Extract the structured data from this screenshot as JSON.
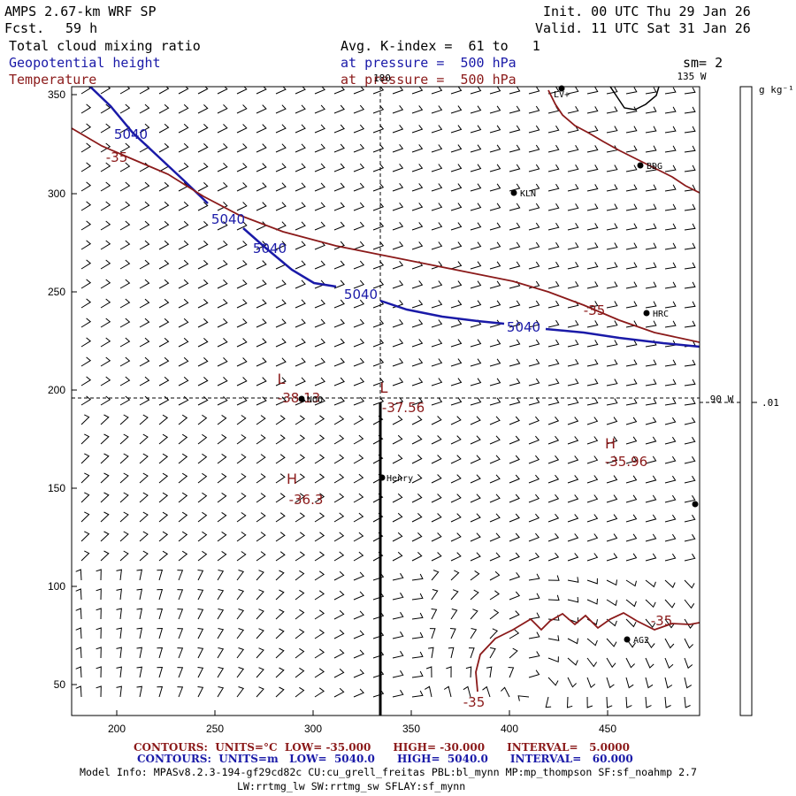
{
  "header": {
    "model": "AMPS 2.67-km WRF SP",
    "fcst_label": "Fcst.",
    "fcst_value": "59 h",
    "init": "Init. 00 UTC Thu 29 Jan 26",
    "valid": "Valid. 11 UTC Sat 31 Jan 26",
    "field1": "Total cloud mixing ratio",
    "field2": "Geopotential height",
    "field3": "Temperature",
    "avg_line": "Avg. K-index =  61 to   1",
    "pressure_blue": "at pressure =  500 hPa",
    "pressure_red": "at pressure =  500 hPa",
    "sm": "sm= 2"
  },
  "axes": {
    "x_ticks": [
      "200",
      "250",
      "300",
      "350",
      "400",
      "450"
    ],
    "y_ticks": [
      "350",
      "300",
      "250",
      "200",
      "150",
      "100",
      "50"
    ],
    "lon_labels": [
      "180",
      "135 W",
      "90 W"
    ]
  },
  "colorbar": {
    "unit": "g kg⁻¹",
    "value": ".01"
  },
  "map": {
    "contour_labels_blue": [
      "5040",
      "5040",
      "5040",
      "5040",
      "5040"
    ],
    "contour_labels_red": [
      "-35",
      "-35",
      "-35",
      "-35"
    ],
    "low1_marker": "L",
    "low1_value": "-38.13",
    "low2_marker": "L",
    "low2_value": "-37.56",
    "high1_marker": "H",
    "high1_value": "-35.96",
    "high2_marker": "H",
    "high2_value": "-36.3",
    "stations": [
      "LV+",
      "BDG",
      "KLN",
      "HRC",
      "NOO",
      "Henry",
      "AG2"
    ]
  },
  "footer": {
    "red_line": "CONTOURS:  UNITS=°C  LOW= -35.000      HIGH= -30.000      INTERVAL=   5.0000",
    "blue_line": "CONTOURS:  UNITS=m   LOW=  5040.0      HIGH=  5040.0      INTERVAL=   60.000",
    "model_info": "Model Info: MPASv8.2.3-194-gf29cd82c CU:cu_grell_freitas PBL:bl_mynn MP:mp_thompson SF:sf_noahmp 2.7",
    "model_info2": "LW:rrtmg_lw SW:rrtmg_sw SFLAY:sf_mynn"
  },
  "colors": {
    "height": "#1a1aa8",
    "temperature": "#8b1a1a",
    "text": "#000000"
  }
}
